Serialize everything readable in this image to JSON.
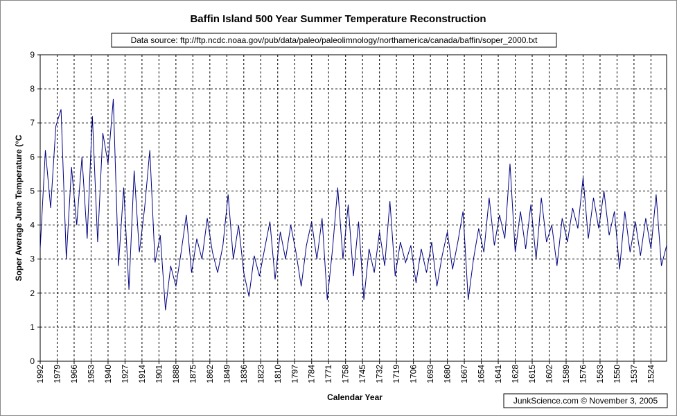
{
  "chart_data": {
    "type": "line",
    "title": "Baffin Island 500 Year Summer Temperature Reconstruction",
    "subtitle": "Data source: ftp://ftp.ncdc.noaa.gov/pub/data/paleo/paleolimnology/northamerica/canada/baffin/soper_2000.txt",
    "x_label": "Calendar Year",
    "y_label": "Soper Average June Temperature (°C",
    "credit": "JunkScience.com ©  November 3, 2005",
    "xlim": [
      1992,
      1512
    ],
    "ylim": [
      0,
      9
    ],
    "xticks": [
      1992,
      1979,
      1966,
      1953,
      1940,
      1927,
      1914,
      1901,
      1888,
      1875,
      1862,
      1849,
      1836,
      1823,
      1810,
      1797,
      1784,
      1771,
      1758,
      1745,
      1732,
      1719,
      1706,
      1693,
      1680,
      1667,
      1654,
      1641,
      1628,
      1615,
      1602,
      1589,
      1576,
      1563,
      1550,
      1537,
      1524
    ],
    "yticks": [
      0,
      1,
      2,
      3,
      4,
      5,
      6,
      7,
      8,
      9
    ],
    "grid": true,
    "x": [
      1992,
      1988,
      1984,
      1980,
      1976,
      1972,
      1968,
      1964,
      1960,
      1956,
      1952,
      1948,
      1944,
      1940,
      1936,
      1932,
      1928,
      1924,
      1920,
      1916,
      1912,
      1908,
      1904,
      1900,
      1896,
      1892,
      1888,
      1884,
      1880,
      1876,
      1872,
      1868,
      1864,
      1860,
      1856,
      1852,
      1848,
      1844,
      1840,
      1836,
      1832,
      1828,
      1824,
      1820,
      1816,
      1812,
      1808,
      1804,
      1800,
      1796,
      1792,
      1788,
      1784,
      1780,
      1776,
      1772,
      1768,
      1764,
      1760,
      1756,
      1752,
      1748,
      1744,
      1740,
      1736,
      1732,
      1728,
      1724,
      1720,
      1716,
      1712,
      1708,
      1704,
      1700,
      1696,
      1692,
      1688,
      1684,
      1680,
      1676,
      1672,
      1668,
      1664,
      1660,
      1656,
      1652,
      1648,
      1644,
      1640,
      1636,
      1632,
      1628,
      1624,
      1620,
      1616,
      1612,
      1608,
      1604,
      1600,
      1596,
      1592,
      1588,
      1584,
      1580,
      1576,
      1572,
      1568,
      1564,
      1560,
      1556,
      1552,
      1548,
      1544,
      1540,
      1536,
      1532,
      1528,
      1524,
      1520,
      1516,
      1512
    ],
    "series": [
      {
        "color": "#000080",
        "values": [
          3.3,
          6.2,
          4.5,
          6.9,
          7.4,
          3.0,
          5.7,
          4.0,
          6.0,
          3.6,
          7.2,
          3.5,
          6.7,
          5.8,
          7.7,
          2.8,
          5.1,
          2.1,
          5.6,
          3.2,
          4.5,
          6.2,
          2.9,
          3.7,
          1.5,
          2.8,
          2.2,
          3.2,
          4.3,
          2.6,
          3.6,
          3.0,
          4.2,
          3.2,
          2.6,
          3.4,
          4.9,
          3.0,
          4.0,
          2.6,
          1.9,
          3.1,
          2.5,
          3.3,
          4.1,
          2.4,
          3.8,
          3.0,
          4.0,
          3.2,
          2.2,
          3.4,
          4.1,
          3.0,
          4.2,
          1.8,
          3.3,
          5.1,
          3.0,
          4.6,
          2.5,
          4.1,
          1.8,
          3.3,
          2.6,
          3.8,
          2.8,
          4.7,
          2.5,
          3.5,
          2.9,
          3.4,
          2.3,
          3.3,
          2.6,
          3.5,
          2.2,
          3.1,
          3.8,
          2.7,
          3.5,
          4.4,
          1.8,
          3.0,
          3.9,
          3.2,
          4.8,
          3.4,
          4.3,
          3.6,
          5.8,
          3.2,
          4.4,
          3.3,
          4.6,
          3.0,
          4.8,
          3.5,
          4.0,
          2.8,
          4.2,
          3.5,
          4.5,
          3.9,
          5.4,
          3.6,
          4.8,
          3.9,
          5.0,
          3.7,
          4.4,
          2.7,
          4.4,
          3.2,
          4.1,
          3.1,
          4.2,
          3.3,
          4.9,
          2.8,
          3.4
        ]
      }
    ]
  }
}
